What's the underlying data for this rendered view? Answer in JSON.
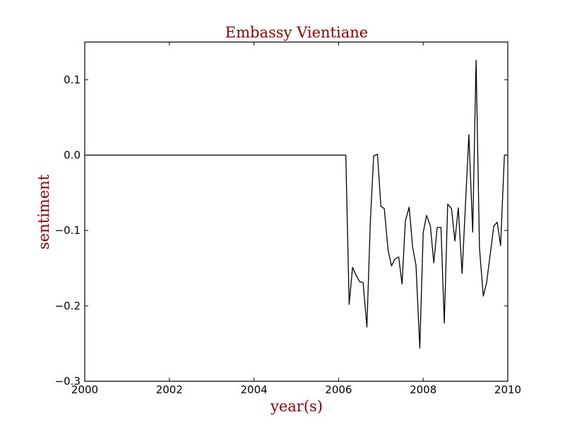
{
  "chart_data": {
    "type": "line",
    "title": "Embassy Vientiane",
    "xlabel": "year(s)",
    "ylabel": "sentiment",
    "xlim": [
      2000,
      2010
    ],
    "ylim": [
      -0.3,
      0.15
    ],
    "xticks": [
      2000,
      2002,
      2004,
      2006,
      2008,
      2010
    ],
    "xtick_labels": [
      "2000",
      "2002",
      "2004",
      "2006",
      "2008",
      "2010"
    ],
    "yticks": [
      -0.3,
      -0.2,
      -0.1,
      0.0,
      0.1
    ],
    "ytick_labels": [
      "−0.3",
      "−0.2",
      "−0.1",
      "0.0",
      "0.1"
    ],
    "grid": false,
    "legend": "none",
    "series": [
      {
        "color": "#000000",
        "x": [
          2000.0,
          2006.17,
          2006.25,
          2006.33,
          2006.42,
          2006.5,
          2006.58,
          2006.67,
          2006.75,
          2006.83,
          2006.92,
          2007.0,
          2007.08,
          2007.17,
          2007.25,
          2007.33,
          2007.42,
          2007.5,
          2007.58,
          2007.67,
          2007.75,
          2007.83,
          2007.92,
          2008.0,
          2008.08,
          2008.17,
          2008.25,
          2008.33,
          2008.42,
          2008.5,
          2008.58,
          2008.67,
          2008.75,
          2008.83,
          2008.92,
          2009.0,
          2009.08,
          2009.17,
          2009.25,
          2009.33,
          2009.42,
          2009.5,
          2009.58,
          2009.67,
          2009.75,
          2009.83,
          2009.92,
          2010.0
        ],
        "y": [
          0.0,
          0.0,
          -0.198,
          -0.149,
          -0.16,
          -0.168,
          -0.169,
          -0.228,
          -0.09,
          -0.001,
          0.001,
          -0.068,
          -0.071,
          -0.126,
          -0.147,
          -0.138,
          -0.135,
          -0.171,
          -0.087,
          -0.069,
          -0.122,
          -0.146,
          -0.256,
          -0.103,
          -0.08,
          -0.094,
          -0.143,
          -0.096,
          -0.096,
          -0.223,
          -0.065,
          -0.071,
          -0.114,
          -0.07,
          -0.157,
          -0.065,
          0.027,
          -0.102,
          0.126,
          -0.123,
          -0.187,
          -0.169,
          -0.134,
          -0.094,
          -0.089,
          -0.12,
          0.0,
          0.0
        ]
      }
    ]
  }
}
